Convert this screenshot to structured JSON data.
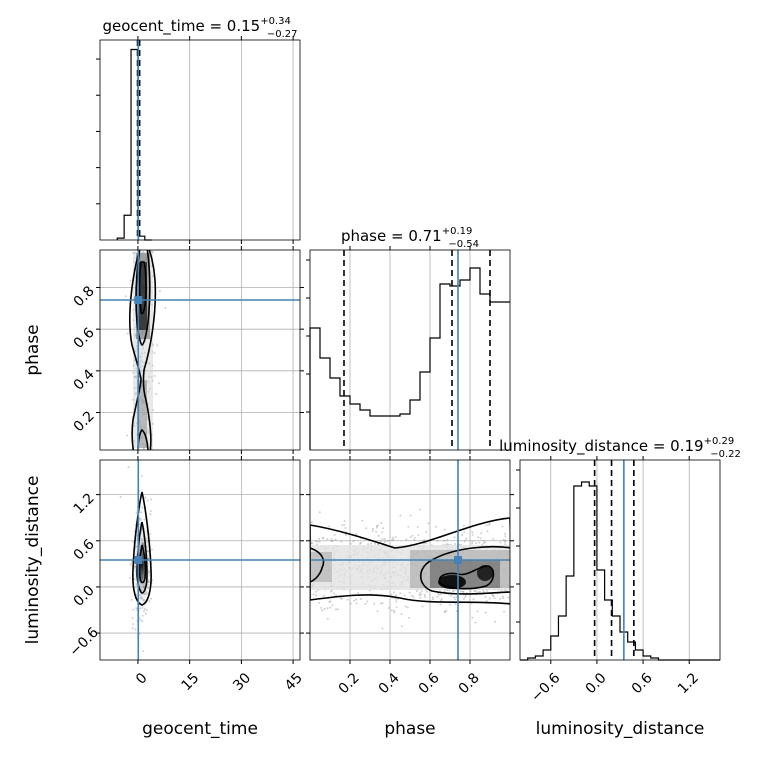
{
  "chart_data": [
    {
      "type": "histogram",
      "panel": "geocent_time-marginal",
      "title": {
        "prefix": "geocent_time = 0.15",
        "sup": "+0.34",
        "sub": "−0.27"
      },
      "x_param": "geocent_time",
      "xlim": [
        -11,
        47
      ],
      "bins": [
        -6,
        -4,
        -2,
        0,
        2,
        4
      ],
      "counts": [
        0.01,
        0.13,
        1.0,
        0.02,
        0
      ],
      "ymax": 1.05,
      "quantiles": [
        -0.12,
        0.15,
        0.49
      ],
      "truth": 0.1
    },
    {
      "type": "histogram",
      "panel": "phase-marginal",
      "title": {
        "prefix": "phase = 0.71",
        "sup": "+0.19",
        "sub": "−0.54"
      },
      "x_param": "phase",
      "xlim": [
        0.0,
        1.0
      ],
      "bin_width": 0.05,
      "counts": [
        0.61,
        0.46,
        0.36,
        0.27,
        0.23,
        0.2,
        0.17,
        0.17,
        0.17,
        0.18,
        0.25,
        0.39,
        0.56,
        0.83,
        0.82,
        0.85,
        0.91,
        0.78,
        0.74,
        0.74
      ],
      "ymax": 1.0,
      "quantiles": [
        0.17,
        0.71,
        0.9
      ],
      "truth": 0.74
    },
    {
      "type": "histogram",
      "panel": "luminosity_distance-marginal",
      "title": {
        "prefix": "luminosity_distance = 0.19",
        "sup": "+0.29",
        "sub": "−0.22"
      },
      "x_param": "luminosity_distance",
      "xlim": [
        -1.0,
        1.6
      ],
      "bin_width": 0.1,
      "counts": [
        0.0,
        0.01,
        0.02,
        0.05,
        0.12,
        0.22,
        0.42,
        0.87,
        0.89,
        0.87,
        0.45,
        0.3,
        0.22,
        0.14,
        0.09,
        0.05,
        0.02,
        0.01,
        0.0,
        0.0,
        0.0,
        0.0,
        0.0,
        0.0,
        0.0,
        0.0
      ],
      "ymax": 1.0,
      "quantiles": [
        -0.03,
        0.19,
        0.48
      ],
      "truth": 0.35
    },
    {
      "type": "contour",
      "panel": "phase-vs-geocent_time",
      "x_param": "geocent_time",
      "y_param": "phase",
      "xlim": [
        -11,
        47
      ],
      "ylim": [
        0.02,
        0.98
      ],
      "truth": [
        0.1,
        0.74
      ]
    },
    {
      "type": "contour",
      "panel": "luminosity_distance-vs-geocent_time",
      "x_param": "geocent_time",
      "y_param": "luminosity_distance",
      "xlim": [
        -11,
        47
      ],
      "ylim": [
        -0.95,
        1.65
      ],
      "truth": [
        0.1,
        0.35
      ]
    },
    {
      "type": "contour",
      "panel": "luminosity_distance-vs-phase",
      "x_param": "phase",
      "y_param": "luminosity_distance",
      "xlim": [
        0.0,
        1.0
      ],
      "ylim": [
        -0.95,
        1.65
      ],
      "truth": [
        0.74,
        0.35
      ]
    }
  ],
  "ticks": {
    "geocent_time": {
      "values": [
        0,
        15,
        30,
        45
      ],
      "labels": [
        "0",
        "15",
        "30",
        "45"
      ]
    },
    "phase": {
      "values": [
        0.2,
        0.4,
        0.6,
        0.8
      ],
      "labels": [
        "0.2",
        "0.4",
        "0.6",
        "0.8"
      ]
    },
    "luminosity_distance": {
      "values": [
        -0.6,
        0.0,
        0.6,
        1.2
      ],
      "labels": [
        "−0.6",
        "0.0",
        "0.6",
        "1.2"
      ]
    }
  },
  "axis_labels": {
    "geocent_time": "geocent_time",
    "phase": "phase",
    "luminosity_distance": "luminosity_distance"
  },
  "colors": {
    "truth": "#4682b4",
    "hist": "#000000",
    "grid": "#b0b0b0"
  }
}
